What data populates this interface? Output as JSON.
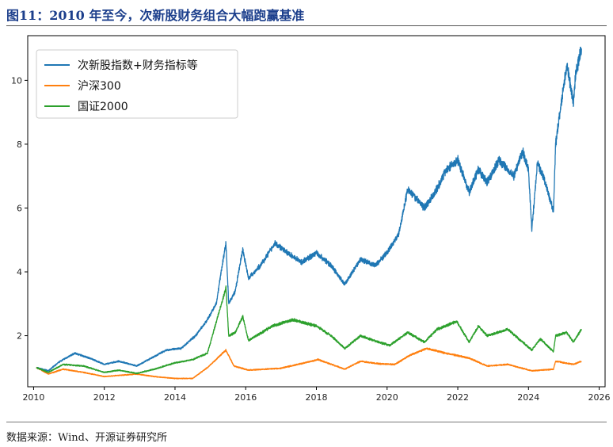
{
  "header": {
    "title": "图11：2010 年至今，次新股财务组合大幅跑赢基准"
  },
  "footer": {
    "source": "数据来源：Wind、开源证券研究所"
  },
  "chart_data": {
    "type": "line",
    "title": "",
    "xlabel": "",
    "ylabel": "",
    "x_ticks": [
      "2010",
      "2012",
      "2014",
      "2016",
      "2018",
      "2020",
      "2022",
      "2024",
      "2026"
    ],
    "y_ticks": [
      "2",
      "4",
      "6",
      "8",
      "10"
    ],
    "xlim": [
      "2009-11-01",
      "2026-03-01"
    ],
    "ylim": [
      0.4,
      11.4
    ],
    "grid": false,
    "legend": "top-left",
    "series": [
      {
        "name": "次新股指数+财务指标等",
        "color": "#1f77b4",
        "x": [
          "2010-02-01",
          "2010-06-01",
          "2010-10-01",
          "2011-03-01",
          "2011-08-01",
          "2012-01-01",
          "2012-06-01",
          "2012-12-01",
          "2013-05-01",
          "2013-10-01",
          "2014-03-01",
          "2014-08-01",
          "2014-12-01",
          "2015-03-01",
          "2015-05-01",
          "2015-06-10",
          "2015-07-08",
          "2015-09-15",
          "2015-12-01",
          "2016-01-30",
          "2016-06-01",
          "2016-11-01",
          "2017-03-01",
          "2017-08-01",
          "2018-01-01",
          "2018-06-01",
          "2018-10-20",
          "2019-04-01",
          "2019-09-01",
          "2020-01-01",
          "2020-05-01",
          "2020-08-01",
          "2020-10-01",
          "2021-01-20",
          "2021-06-01",
          "2021-09-01",
          "2022-01-01",
          "2022-04-27",
          "2022-08-01",
          "2022-10-30",
          "2023-03-01",
          "2023-08-01",
          "2023-11-01",
          "2024-01-01",
          "2024-02-05",
          "2024-04-01",
          "2024-06-01",
          "2024-09-15",
          "2024-10-08",
          "2024-12-01",
          "2025-02-01",
          "2025-04-08",
          "2025-05-01",
          "2025-07-01"
        ],
        "y": [
          1.0,
          0.9,
          1.2,
          1.45,
          1.3,
          1.1,
          1.2,
          1.05,
          1.3,
          1.55,
          1.6,
          2.0,
          2.5,
          3.0,
          4.2,
          4.9,
          3.0,
          3.4,
          4.7,
          3.8,
          4.2,
          4.9,
          4.6,
          4.3,
          4.6,
          4.2,
          3.6,
          4.4,
          4.2,
          4.6,
          5.2,
          6.6,
          6.4,
          6.0,
          6.6,
          7.2,
          7.5,
          6.5,
          7.2,
          6.8,
          7.5,
          7.0,
          7.8,
          7.2,
          5.3,
          7.4,
          7.0,
          5.9,
          8.0,
          9.2,
          10.5,
          9.3,
          10.2,
          11.0
        ]
      },
      {
        "name": "沪深300",
        "color": "#ff7f0e",
        "x": [
          "2010-02-01",
          "2010-06-01",
          "2010-11-01",
          "2011-06-01",
          "2012-01-01",
          "2012-12-01",
          "2013-06-01",
          "2014-01-01",
          "2014-07-01",
          "2014-12-01",
          "2015-06-10",
          "2015-09-01",
          "2016-01-30",
          "2017-01-01",
          "2018-01-20",
          "2018-10-20",
          "2019-04-01",
          "2019-10-01",
          "2020-03-20",
          "2020-09-01",
          "2021-02-15",
          "2021-09-01",
          "2022-04-27",
          "2022-10-30",
          "2023-06-01",
          "2024-02-05",
          "2024-09-15",
          "2024-10-08",
          "2025-04-08",
          "2025-07-01"
        ],
        "y": [
          1.0,
          0.8,
          0.95,
          0.85,
          0.72,
          0.8,
          0.72,
          0.66,
          0.66,
          1.0,
          1.55,
          1.05,
          0.92,
          0.98,
          1.25,
          0.95,
          1.2,
          1.12,
          1.1,
          1.4,
          1.6,
          1.45,
          1.3,
          1.05,
          1.1,
          0.9,
          0.95,
          1.2,
          1.1,
          1.2
        ]
      },
      {
        "name": "国证2000",
        "color": "#2ca02c",
        "x": [
          "2010-02-01",
          "2010-06-01",
          "2010-11-01",
          "2011-06-01",
          "2012-01-01",
          "2012-06-01",
          "2012-12-01",
          "2013-06-01",
          "2014-01-01",
          "2014-07-01",
          "2014-12-01",
          "2015-06-10",
          "2015-07-08",
          "2015-09-15",
          "2015-12-01",
          "2016-01-30",
          "2016-10-01",
          "2017-05-01",
          "2018-01-01",
          "2018-06-01",
          "2018-10-20",
          "2019-04-01",
          "2019-10-01",
          "2020-02-01",
          "2020-08-01",
          "2021-01-20",
          "2021-06-01",
          "2021-12-20",
          "2022-04-27",
          "2022-08-01",
          "2022-10-30",
          "2023-06-01",
          "2024-02-05",
          "2024-05-01",
          "2024-09-15",
          "2024-10-08",
          "2025-02-01",
          "2025-04-08",
          "2025-07-01"
        ],
        "y": [
          1.0,
          0.85,
          1.1,
          1.05,
          0.85,
          0.92,
          0.82,
          0.95,
          1.15,
          1.25,
          1.45,
          3.5,
          2.0,
          2.1,
          2.6,
          1.85,
          2.3,
          2.5,
          2.3,
          2.0,
          1.6,
          2.0,
          1.8,
          1.7,
          2.1,
          1.8,
          2.2,
          2.45,
          1.8,
          2.3,
          2.0,
          2.2,
          1.55,
          1.9,
          1.5,
          2.0,
          2.1,
          1.8,
          2.2
        ]
      }
    ]
  }
}
